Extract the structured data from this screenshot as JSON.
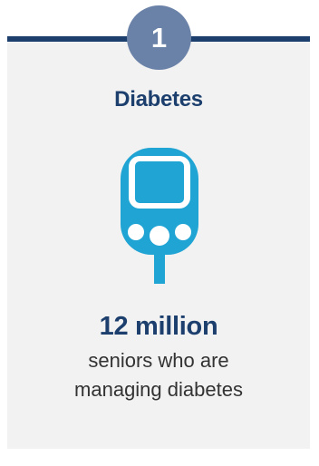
{
  "badge": {
    "number": "1"
  },
  "title": "Diabetes",
  "icon": "glucose-meter-icon",
  "stat": {
    "value": "12 million"
  },
  "description": {
    "line1": "seniors who are",
    "line2": "managing diabetes"
  },
  "colors": {
    "primary": "#1c3f6e",
    "badge": "#6b82a8",
    "icon": "#1fa4d4",
    "card": "#f2f2f2"
  }
}
